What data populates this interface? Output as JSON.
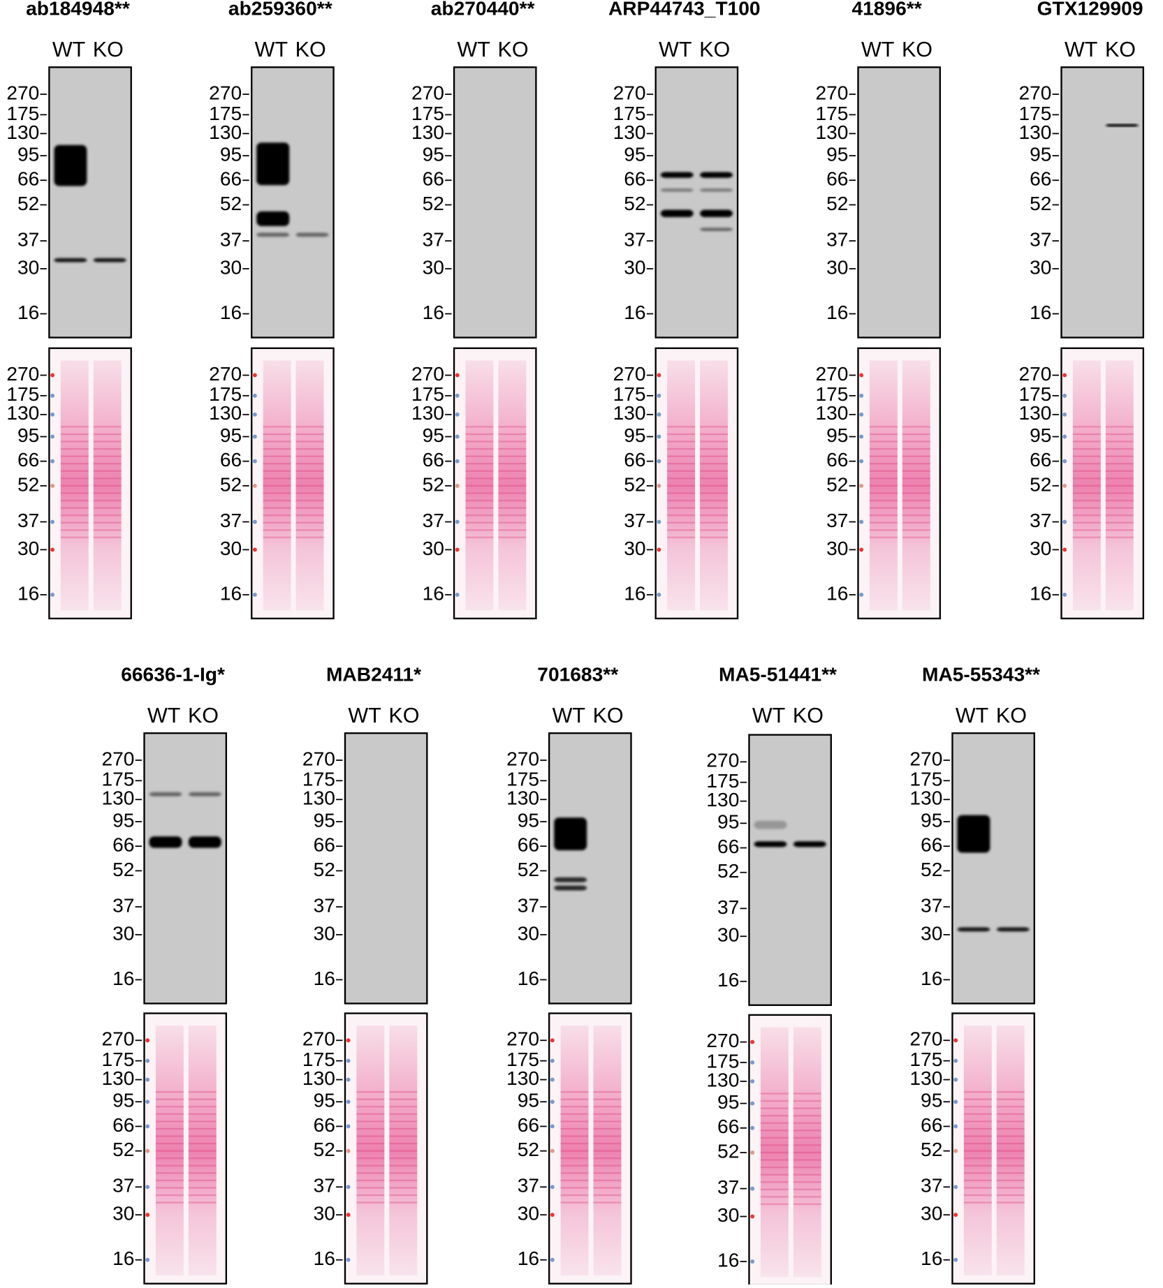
{
  "panels": [
    {
      "title": "ab184948**",
      "lanes": [
        "WT",
        "KO"
      ],
      "blot_markers": [
        "270",
        "175",
        "130",
        "95",
        "66",
        "52",
        "37",
        "30",
        "16"
      ],
      "stain_markers": [
        "270",
        "175",
        "130",
        "95",
        "66",
        "52",
        "37",
        "30",
        "16"
      ]
    },
    {
      "title": "ab259360**",
      "lanes": [
        "WT",
        "KO"
      ],
      "blot_markers": [
        "270",
        "175",
        "130",
        "95",
        "66",
        "52",
        "37",
        "30",
        "16"
      ],
      "stain_markers": [
        "270",
        "175",
        "130",
        "95",
        "66",
        "52",
        "37",
        "30",
        "16"
      ]
    },
    {
      "title": "ab270440**",
      "lanes": [
        "WT",
        "KO"
      ],
      "blot_markers": [
        "270",
        "175",
        "130",
        "95",
        "66",
        "52",
        "37",
        "30",
        "16"
      ],
      "stain_markers": [
        "270",
        "175",
        "130",
        "95",
        "66",
        "52",
        "37",
        "30",
        "16"
      ]
    },
    {
      "title": "ARP44743_T100",
      "lanes": [
        "WT",
        "KO"
      ],
      "blot_markers": [
        "270",
        "175",
        "130",
        "95",
        "66",
        "52",
        "37",
        "30",
        "16"
      ],
      "stain_markers": [
        "270",
        "175",
        "130",
        "95",
        "66",
        "52",
        "37",
        "30",
        "16"
      ]
    },
    {
      "title": "41896**",
      "lanes": [
        "WT",
        "KO"
      ],
      "blot_markers": [
        "270",
        "175",
        "130",
        "95",
        "66",
        "52",
        "37",
        "30",
        "16"
      ],
      "stain_markers": [
        "270",
        "175",
        "130",
        "95",
        "66",
        "52",
        "37",
        "30",
        "16"
      ]
    },
    {
      "title": "GTX129909",
      "lanes": [
        "WT",
        "KO"
      ],
      "blot_markers": [
        "270",
        "175",
        "130",
        "95",
        "66",
        "52",
        "37",
        "30",
        "16"
      ],
      "stain_markers": [
        "270",
        "175",
        "130",
        "95",
        "66",
        "52",
        "37",
        "30",
        "16"
      ]
    },
    {
      "title": "66636-1-Ig*",
      "lanes": [
        "WT",
        "KO"
      ],
      "blot_markers": [
        "270",
        "175",
        "130",
        "95",
        "66",
        "52",
        "37",
        "30",
        "16"
      ],
      "stain_markers": [
        "270",
        "175",
        "130",
        "95",
        "66",
        "52",
        "37",
        "30",
        "16"
      ]
    },
    {
      "title": "MAB2411*",
      "lanes": [
        "WT",
        "KO"
      ],
      "blot_markers": [
        "270",
        "175",
        "130",
        "95",
        "66",
        "52",
        "37",
        "30",
        "16"
      ],
      "stain_markers": [
        "270",
        "175",
        "130",
        "95",
        "66",
        "52",
        "37",
        "30",
        "16"
      ]
    },
    {
      "title": "701683**",
      "lanes": [
        "WT",
        "KO"
      ],
      "blot_markers": [
        "270",
        "175",
        "130",
        "95",
        "66",
        "52",
        "37",
        "30",
        "16"
      ],
      "stain_markers": [
        "270",
        "175",
        "130",
        "95",
        "66",
        "52",
        "37",
        "30",
        "16"
      ]
    },
    {
      "title": "MA5-51441**",
      "lanes": [
        "WT",
        "KO"
      ],
      "blot_markers": [
        "270",
        "175",
        "130",
        "95",
        "66",
        "52",
        "37",
        "30",
        "16"
      ],
      "stain_markers": [
        "270",
        "175",
        "130",
        "95",
        "66",
        "52",
        "37",
        "30",
        "16"
      ]
    },
    {
      "title": "MA5-55343**",
      "lanes": [
        "WT",
        "KO"
      ],
      "blot_markers": [
        "270",
        "175",
        "130",
        "95",
        "66",
        "52",
        "37",
        "30",
        "16"
      ],
      "stain_markers": [
        "270",
        "175",
        "130",
        "95",
        "66",
        "52",
        "37",
        "30",
        "16"
      ]
    }
  ]
}
